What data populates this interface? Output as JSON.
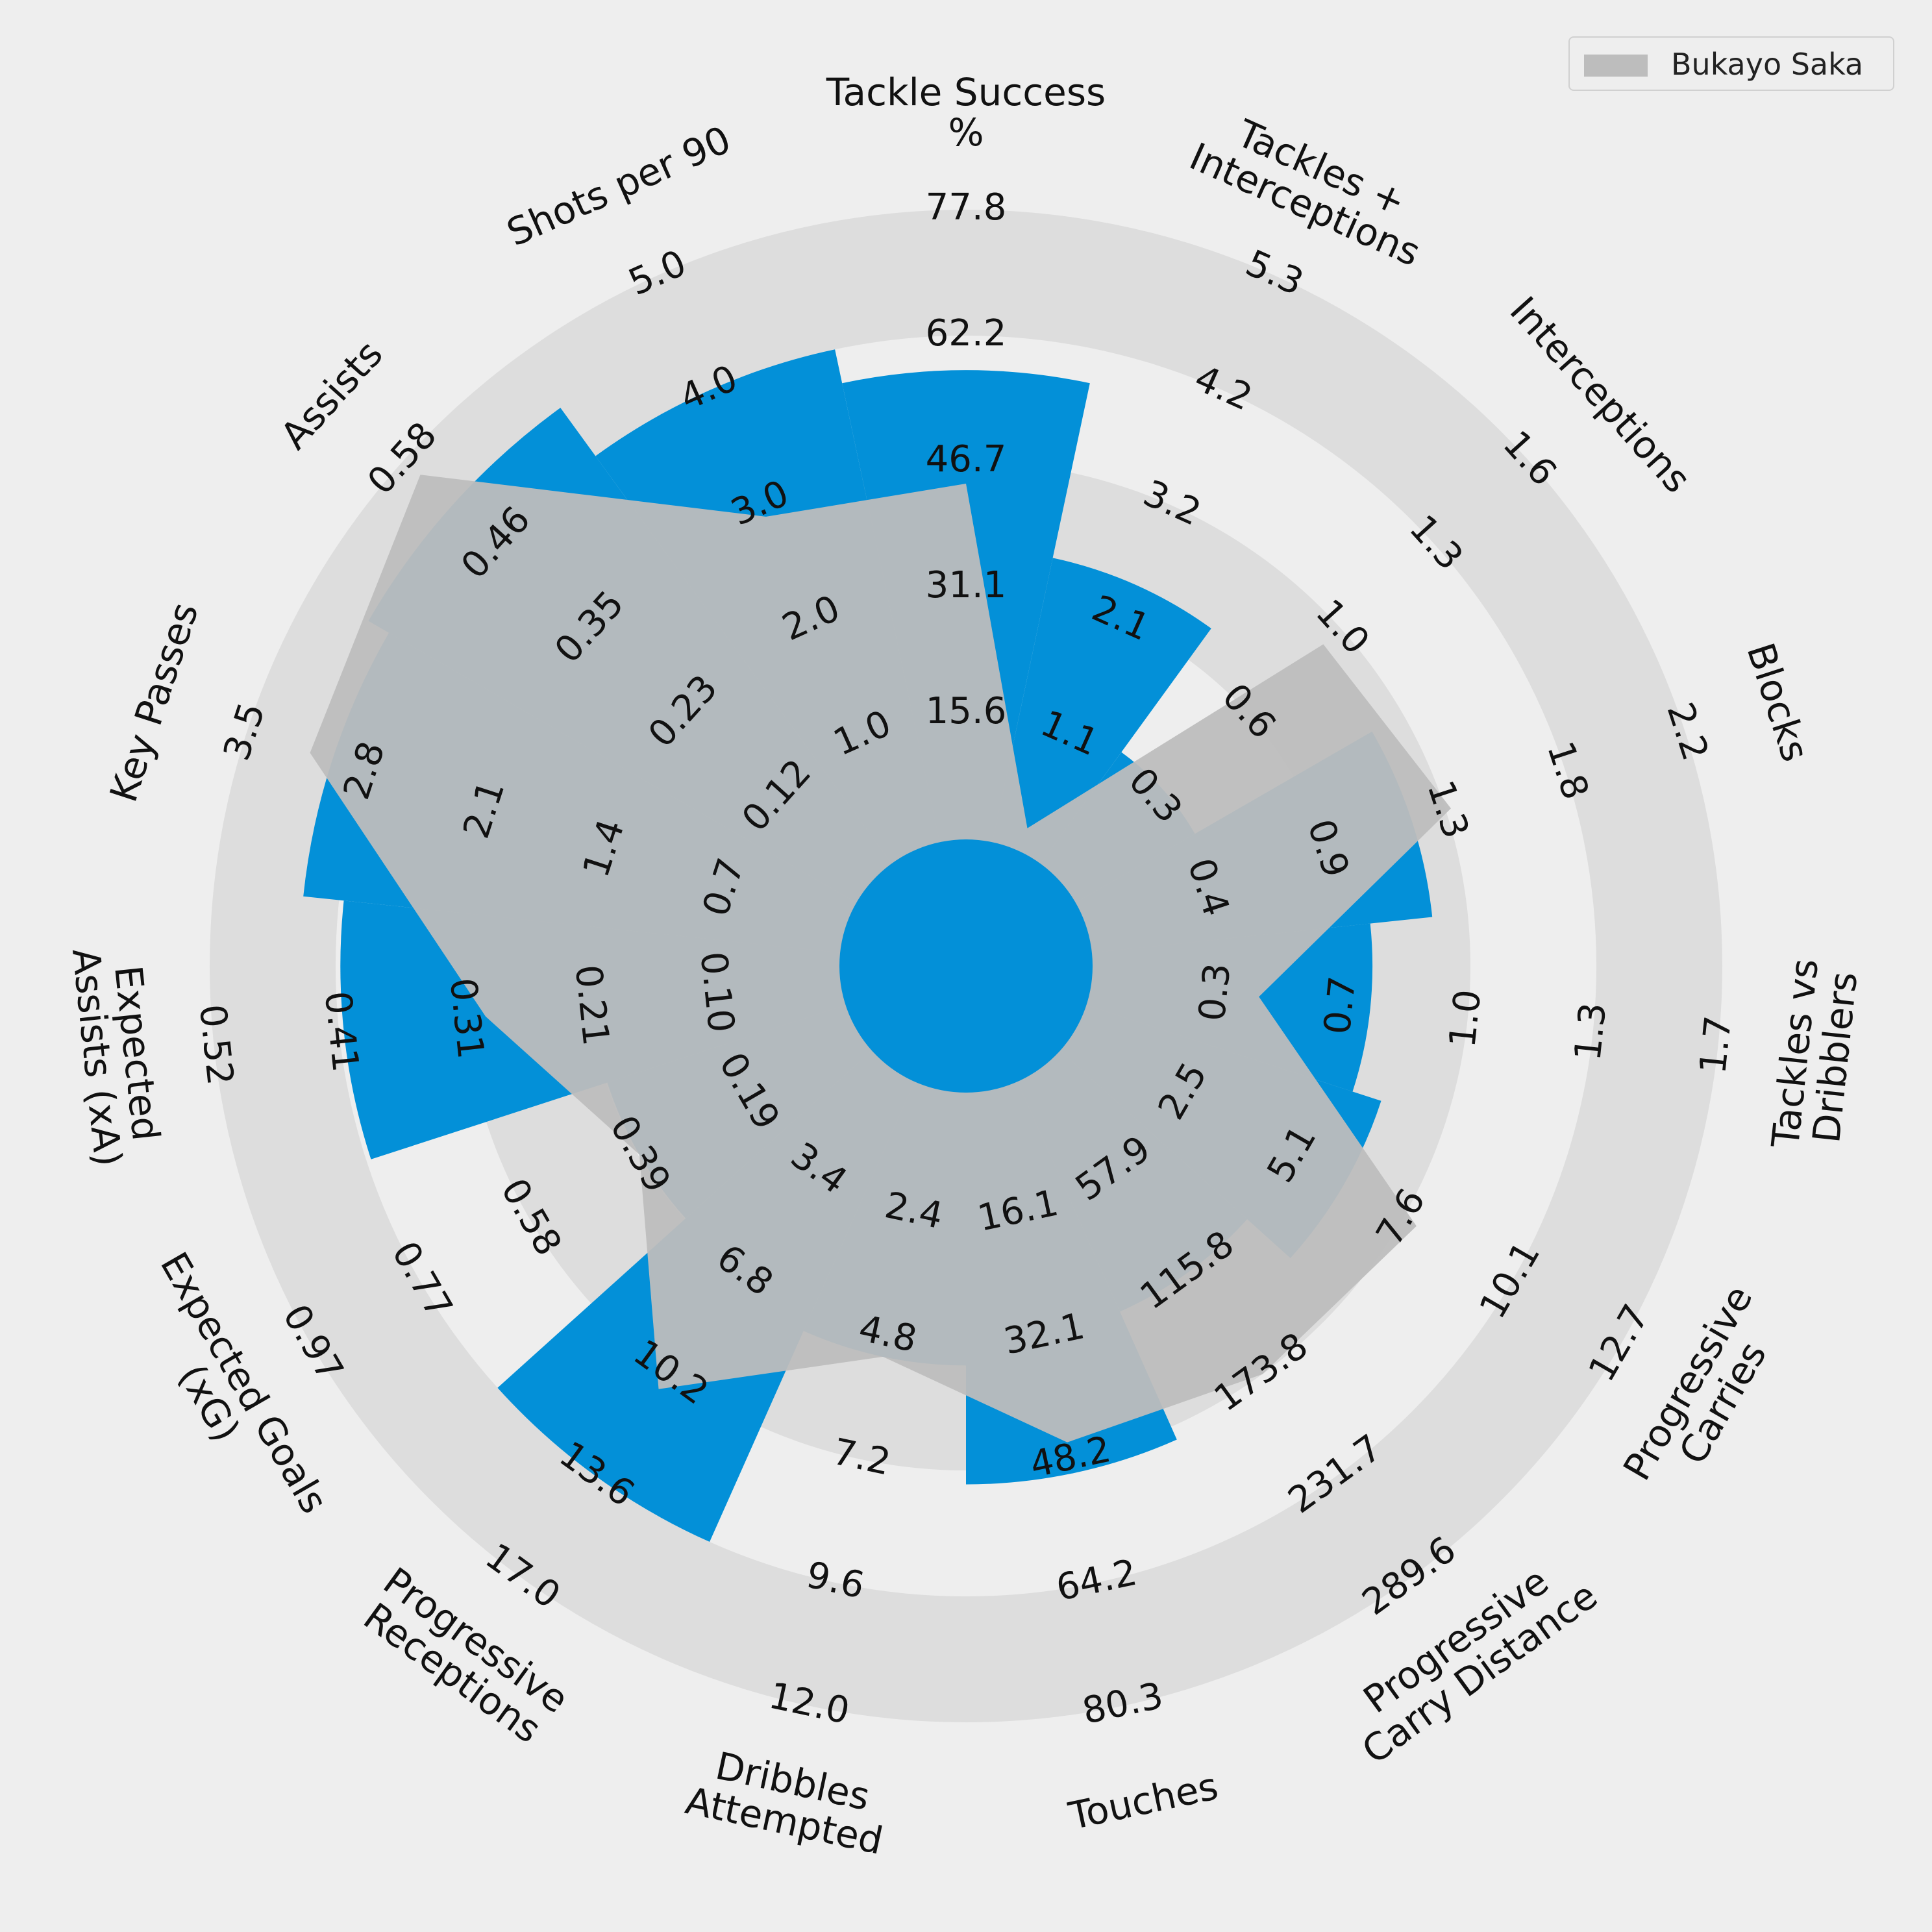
{
  "chart_data": {
    "type": "radar",
    "legend_position": "top-right",
    "series": [
      {
        "name": "Bukayo Saka",
        "color": "#bdbdbd"
      }
    ],
    "colors": {
      "background": "#eeeeee",
      "ring_dark": "#dddddd",
      "ring_light": "#eeeeee",
      "comparison_fill": "#0390d8",
      "player_fill": "#bdbdbd",
      "text": "#111111"
    },
    "parameters": [
      {
        "label": "Tackle Success\n%",
        "ticks": [
          "15.6",
          "31.1",
          "46.7",
          "62.2",
          "77.8"
        ],
        "value": 44.0,
        "comparison_value": 58.0
      },
      {
        "label": "Tackles +\nInterceptions",
        "ticks": [
          "1.1",
          "2.1",
          "3.2",
          "4.2",
          "5.3"
        ],
        "value": 0.3,
        "comparison_value": 2.5
      },
      {
        "label": "Interceptions",
        "ticks": [
          "0.3",
          "0.6",
          "1.0",
          "1.3",
          "1.6"
        ],
        "value": 0.9,
        "comparison_value": 0.35
      },
      {
        "label": "Blocks",
        "ticks": [
          "0.4",
          "0.9",
          "1.3",
          "1.8",
          "2.2"
        ],
        "value": 1.3,
        "comparison_value": 1.15
      },
      {
        "label": "Tackles vs\nDribblers",
        "ticks": [
          "0.3",
          "0.7",
          "1.0",
          "1.3",
          "1.7"
        ],
        "value": 0.38,
        "comparison_value": 0.7
      },
      {
        "label": "Progressive\nCarries",
        "ticks": [
          "2.5",
          "5.1",
          "7.6",
          "10.1",
          "12.7"
        ],
        "value": 7.9,
        "comparison_value": 6.2
      },
      {
        "label": "Progressive\nCarry Distance",
        "ticks": [
          "57.9",
          "115.8",
          "173.8",
          "231.7",
          "289.6"
        ],
        "value": 173.8,
        "comparison_value": 115.8
      },
      {
        "label": "Touches",
        "ticks": [
          "16.1",
          "32.1",
          "48.2",
          "64.2",
          "80.3"
        ],
        "value": 46.0,
        "comparison_value": 50.0
      },
      {
        "label": "Dribbles\nAttempted",
        "ticks": [
          "2.4",
          "4.8",
          "7.2",
          "9.6",
          "12.0"
        ],
        "value": 5.2,
        "comparison_value": 5.2
      },
      {
        "label": "Progressive\nReceptions",
        "ticks": [
          "3.4",
          "6.8",
          "10.2",
          "13.6",
          "17.0"
        ],
        "value": 10.7,
        "comparison_value": 13.6
      },
      {
        "label": "Expected Goals\n(xG)",
        "ticks": [
          "0.19",
          "0.39",
          "0.58",
          "0.77",
          "0.97"
        ],
        "value": 0.38,
        "comparison_value": 0.38
      },
      {
        "label": "Expected\nAssists (xA)",
        "ticks": [
          "0.10",
          "0.21",
          "0.31",
          "0.41",
          "0.52"
        ],
        "value": 0.29,
        "comparison_value": 0.41
      },
      {
        "label": "Key Passes",
        "ticks": [
          "0.7",
          "1.4",
          "2.1",
          "2.8",
          "3.5"
        ],
        "value": 3.13,
        "comparison_value": 3.0
      },
      {
        "label": "Assists",
        "ticks": [
          "0.12",
          "0.23",
          "0.35",
          "0.46",
          "0.58"
        ],
        "value": 0.56,
        "comparison_value": 0.52
      },
      {
        "label": "Shots per 90",
        "ticks": [
          "1.0",
          "2.0",
          "3.0",
          "4.0",
          "5.0"
        ],
        "value": 2.9,
        "comparison_value": 4.0
      }
    ]
  }
}
